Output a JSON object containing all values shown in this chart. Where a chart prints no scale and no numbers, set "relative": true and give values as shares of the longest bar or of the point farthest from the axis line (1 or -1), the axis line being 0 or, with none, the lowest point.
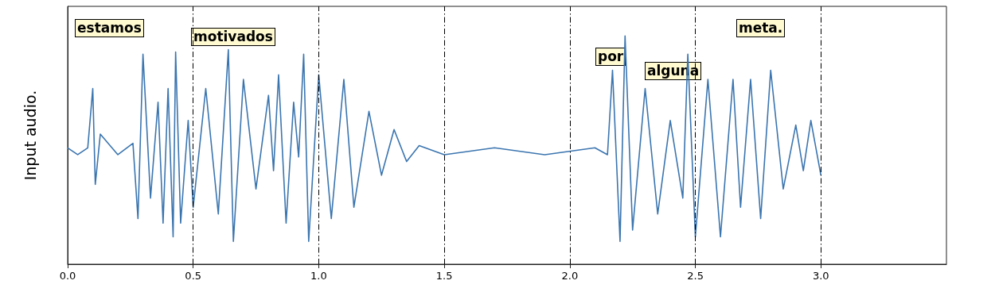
{
  "chart_data": {
    "type": "line",
    "ylabel": "Input audio.",
    "relative": true,
    "color": "#3b75af",
    "grid": false,
    "marker": "none",
    "xlim": [
      0,
      3.5
    ],
    "xticks": [
      {
        "value": 0,
        "label": "0.0"
      },
      {
        "value": 0.5,
        "label": "0.5"
      },
      {
        "value": 1,
        "label": "1.0"
      },
      {
        "value": 1.5,
        "label": "1.5"
      },
      {
        "value": 2,
        "label": "2.0"
      },
      {
        "value": 2.5,
        "label": "2.5"
      },
      {
        "value": 3,
        "label": "3.0"
      }
    ],
    "x": [
      0,
      0.04,
      0.08,
      0.1,
      0.11,
      0.13,
      0.2,
      0.26,
      0.28,
      0.3,
      0.33,
      0.36,
      0.38,
      0.4,
      0.42,
      0.43,
      0.45,
      0.48,
      0.5,
      0.55,
      0.6,
      0.64,
      0.66,
      0.7,
      0.75,
      0.8,
      0.82,
      0.84,
      0.87,
      0.9,
      0.92,
      0.94,
      0.96,
      1.0,
      1.05,
      1.1,
      1.14,
      1.2,
      1.25,
      1.3,
      1.35,
      1.4,
      1.5,
      1.7,
      1.9,
      2.1,
      2.15,
      2.17,
      2.2,
      2.22,
      2.25,
      2.3,
      2.35,
      2.4,
      2.45,
      2.47,
      2.5,
      2.55,
      2.6,
      2.65,
      2.68,
      2.72,
      2.76,
      2.8,
      2.85,
      2.9,
      2.93,
      2.96,
      3.0
    ],
    "series": [
      {
        "values": [
          0.51,
          0.48,
          0.51,
          0.77,
          0.35,
          0.57,
          0.48,
          0.53,
          0.2,
          0.92,
          0.29,
          0.71,
          0.18,
          0.77,
          0.12,
          0.93,
          0.18,
          0.63,
          0.25,
          0.77,
          0.22,
          0.94,
          0.1,
          0.81,
          0.33,
          0.74,
          0.41,
          0.83,
          0.18,
          0.71,
          0.47,
          0.92,
          0.1,
          0.83,
          0.2,
          0.81,
          0.25,
          0.67,
          0.39,
          0.59,
          0.45,
          0.52,
          0.48,
          0.51,
          0.48,
          0.51,
          0.48,
          0.85,
          0.1,
          1,
          0.15,
          0.77,
          0.22,
          0.63,
          0.29,
          0.92,
          0.12,
          0.81,
          0.12,
          0.81,
          0.25,
          0.81,
          0.2,
          0.85,
          0.33,
          0.61,
          0.41,
          0.63,
          0.39
        ]
      }
    ],
    "ref_lines": [
      {
        "axis": "x",
        "value": 0.5,
        "color": "#000000",
        "line_style": "dashed"
      },
      {
        "axis": "x",
        "value": 1,
        "color": "#000000",
        "line_style": "dashed"
      },
      {
        "axis": "x",
        "value": 1.5,
        "color": "#000000",
        "line_style": "dashed"
      },
      {
        "axis": "x",
        "value": 2,
        "color": "#000000",
        "line_style": "dashed"
      },
      {
        "axis": "x",
        "value": 2.5,
        "color": "#000000",
        "line_style": "dashed"
      },
      {
        "axis": "x",
        "value": 3,
        "color": "#000000",
        "line_style": "dashed"
      }
    ],
    "annotations": [
      "estamos",
      "motivados",
      "por",
      "alguna",
      "meta."
    ]
  }
}
